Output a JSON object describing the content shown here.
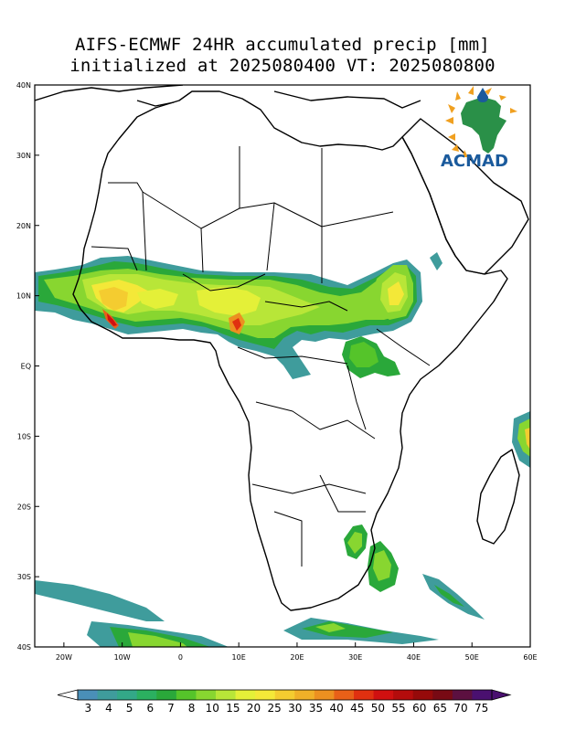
{
  "title": {
    "line1": "AIFS-ECMWF 24HR accumulated precip [mm]",
    "line2": "initialized at 2025080400 VT: 2025080800"
  },
  "logo": {
    "text": "ACMAD"
  },
  "axes": {
    "lat_labels": [
      "40N",
      "30N",
      "20N",
      "10N",
      "EQ",
      "10S",
      "20S",
      "30S",
      "40S"
    ],
    "lon_labels": [
      "20W",
      "10W",
      "0",
      "10E",
      "20E",
      "30E",
      "40E",
      "50E",
      "60E"
    ]
  },
  "colorbar": {
    "labels": [
      "3",
      "4",
      "5",
      "6",
      "7",
      "8",
      "10",
      "15",
      "20",
      "25",
      "30",
      "35",
      "40",
      "45",
      "50",
      "55",
      "60",
      "65",
      "70",
      "75"
    ],
    "colors": [
      "#4a8fb8",
      "#3f9c9c",
      "#33a888",
      "#2bb060",
      "#2aa83a",
      "#55c42a",
      "#88d630",
      "#b8e638",
      "#e4f038",
      "#f4e838",
      "#f4cc30",
      "#f0b028",
      "#ec9020",
      "#e86018",
      "#e03010",
      "#d01010",
      "#b40c0c",
      "#960a0a",
      "#780a14",
      "#5c1040",
      "#4a1070"
    ],
    "end_left": "#ffffff",
    "end_right": "#4a1070"
  }
}
